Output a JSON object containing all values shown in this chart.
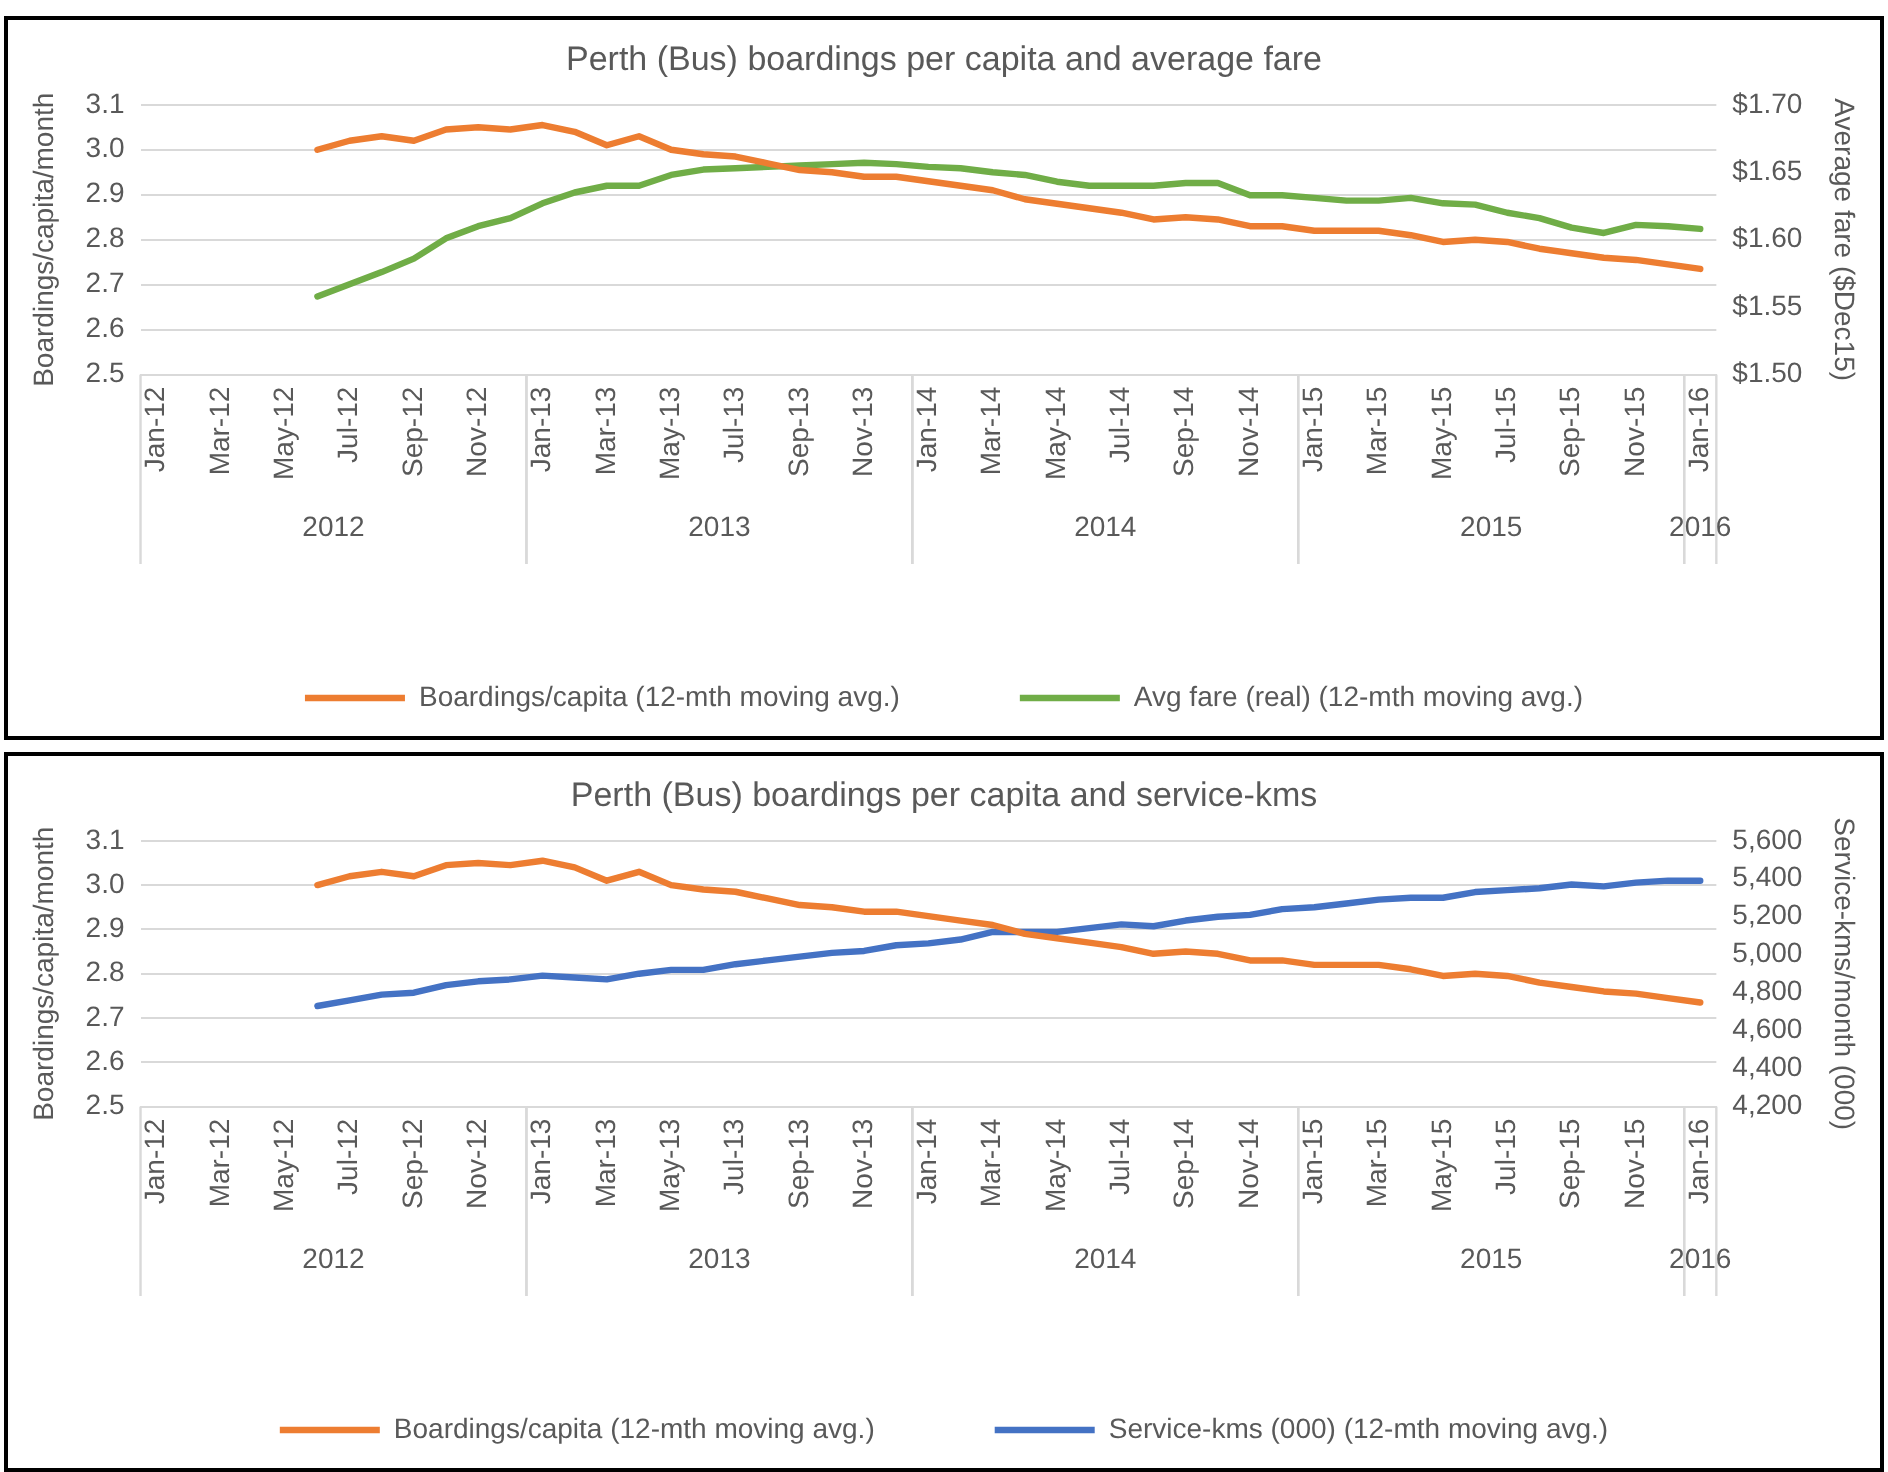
{
  "chart_data": [
    {
      "type": "line",
      "title": "Perth (Bus) boardings per capita and average fare",
      "ylabel": "Boardings/capita/month",
      "y2label": "Average fare ($Dec15)",
      "categories": [
        "Jan-12",
        null,
        "Mar-12",
        null,
        "May-12",
        null,
        "Jul-12",
        null,
        "Sep-12",
        null,
        "Nov-12",
        null,
        "Jan-13",
        null,
        "Mar-13",
        null,
        "May-13",
        null,
        "Jul-13",
        null,
        "Sep-13",
        null,
        "Nov-13",
        null,
        "Jan-14",
        null,
        "Mar-14",
        null,
        "May-14",
        null,
        "Jul-14",
        null,
        "Sep-14",
        null,
        "Nov-14",
        null,
        "Jan-15",
        null,
        "Mar-15",
        null,
        "May-15",
        null,
        "Jul-15",
        null,
        "Sep-15",
        null,
        "Nov-15",
        null,
        "Jan-16"
      ],
      "series": [
        {
          "name": "Boardings/capita (12-mth moving avg.)",
          "color": "#ed7d31",
          "values": [
            null,
            null,
            null,
            null,
            null,
            3.0,
            3.02,
            3.03,
            3.02,
            3.045,
            3.05,
            3.045,
            3.055,
            3.04,
            3.01,
            3.03,
            3.0,
            2.99,
            2.985,
            2.97,
            2.955,
            2.95,
            2.94,
            2.94,
            2.93,
            2.92,
            2.91,
            2.89,
            2.88,
            2.87,
            2.86,
            2.845,
            2.85,
            2.845,
            2.83,
            2.83,
            2.82,
            2.82,
            2.82,
            2.81,
            2.795,
            2.8,
            2.795,
            2.78,
            2.77,
            2.76,
            2.755,
            2.745,
            2.735
          ]
        },
        {
          "name": "Avg fare (real) (12-mth moving avg.)",
          "color": "#70ad47",
          "axis": "y2",
          "values": [
            null,
            null,
            null,
            null,
            null,
            1.558,
            1.567,
            1.576,
            1.586,
            1.601,
            1.61,
            1.616,
            1.627,
            1.635,
            1.64,
            1.64,
            1.648,
            1.652,
            1.653,
            1.654,
            1.655,
            1.656,
            1.657,
            1.656,
            1.654,
            1.653,
            1.65,
            1.648,
            1.643,
            1.64,
            1.64,
            1.64,
            1.642,
            1.642,
            1.633,
            1.633,
            1.631,
            1.629,
            1.629,
            1.631,
            1.627,
            1.626,
            1.62,
            1.616,
            1.609,
            1.605,
            1.611,
            1.61,
            1.608
          ]
        }
      ],
      "ylim": [
        2.5,
        3.1
      ],
      "yticks": [
        {
          "value": 2.5,
          "label": "2.5"
        },
        {
          "value": 2.6,
          "label": "2.6"
        },
        {
          "value": 2.7,
          "label": "2.7"
        },
        {
          "value": 2.8,
          "label": "2.8"
        },
        {
          "value": 2.9,
          "label": "2.9"
        },
        {
          "value": 3.0,
          "label": "3.0"
        },
        {
          "value": 3.1,
          "label": "3.1"
        }
      ],
      "y2lim": [
        1.5,
        1.7
      ],
      "y2ticks": [
        {
          "value": 1.5,
          "label": "$1.50"
        },
        {
          "value": 1.55,
          "label": "$1.55"
        },
        {
          "value": 1.6,
          "label": "$1.60"
        },
        {
          "value": 1.65,
          "label": "$1.65"
        },
        {
          "value": 1.7,
          "label": "$1.70"
        }
      ],
      "annotations": [
        "2012",
        "2013",
        "2014",
        "2015",
        "2016"
      ],
      "grid": "y",
      "legend": "bottom",
      "marker": "none",
      "line_style": "solid"
    },
    {
      "type": "line",
      "title": "Perth (Bus) boardings per capita and service-kms",
      "ylabel": "Boardings/capita/month",
      "y2label": "Service-kms/month (000)",
      "categories": [
        "Jan-12",
        null,
        "Mar-12",
        null,
        "May-12",
        null,
        "Jul-12",
        null,
        "Sep-12",
        null,
        "Nov-12",
        null,
        "Jan-13",
        null,
        "Mar-13",
        null,
        "May-13",
        null,
        "Jul-13",
        null,
        "Sep-13",
        null,
        "Nov-13",
        null,
        "Jan-14",
        null,
        "Mar-14",
        null,
        "May-14",
        null,
        "Jul-14",
        null,
        "Sep-14",
        null,
        "Nov-14",
        null,
        "Jan-15",
        null,
        "Mar-15",
        null,
        "May-15",
        null,
        "Jul-15",
        null,
        "Sep-15",
        null,
        "Nov-15",
        null,
        "Jan-16"
      ],
      "series": [
        {
          "name": "Boardings/capita (12-mth moving avg.)",
          "color": "#ed7d31",
          "values": [
            null,
            null,
            null,
            null,
            null,
            3.0,
            3.02,
            3.03,
            3.02,
            3.045,
            3.05,
            3.045,
            3.055,
            3.04,
            3.01,
            3.03,
            3.0,
            2.99,
            2.985,
            2.97,
            2.955,
            2.95,
            2.94,
            2.94,
            2.93,
            2.92,
            2.91,
            2.89,
            2.88,
            2.87,
            2.86,
            2.845,
            2.85,
            2.845,
            2.83,
            2.83,
            2.82,
            2.82,
            2.82,
            2.81,
            2.795,
            2.8,
            2.795,
            2.78,
            2.77,
            2.76,
            2.755,
            2.745,
            2.735
          ]
        },
        {
          "name": "Service-kms (000) (12-mth moving avg.)",
          "color": "#4472c4",
          "axis": "y2",
          "values": [
            null,
            null,
            null,
            null,
            null,
            4730,
            4760,
            4790,
            4800,
            4840,
            4860,
            4870,
            4890,
            4880,
            4870,
            4900,
            4920,
            4920,
            4950,
            4970,
            4990,
            5010,
            5020,
            5050,
            5060,
            5080,
            5120,
            5120,
            5120,
            5140,
            5160,
            5150,
            5180,
            5200,
            5210,
            5240,
            5250,
            5270,
            5290,
            5300,
            5300,
            5330,
            5340,
            5350,
            5370,
            5360,
            5380,
            5390,
            5390
          ]
        }
      ],
      "ylim": [
        2.5,
        3.1
      ],
      "yticks": [
        {
          "value": 2.5,
          "label": "2.5"
        },
        {
          "value": 2.6,
          "label": "2.6"
        },
        {
          "value": 2.7,
          "label": "2.7"
        },
        {
          "value": 2.8,
          "label": "2.8"
        },
        {
          "value": 2.9,
          "label": "2.9"
        },
        {
          "value": 3.0,
          "label": "3.0"
        },
        {
          "value": 3.1,
          "label": "3.1"
        }
      ],
      "y2lim": [
        4200,
        5600
      ],
      "y2ticks": [
        {
          "value": 4200,
          "label": "4,200"
        },
        {
          "value": 4400,
          "label": "4,400"
        },
        {
          "value": 4600,
          "label": "4,600"
        },
        {
          "value": 4800,
          "label": "4,800"
        },
        {
          "value": 5000,
          "label": "5,000"
        },
        {
          "value": 5200,
          "label": "5,200"
        },
        {
          "value": 5400,
          "label": "5,400"
        },
        {
          "value": 5600,
          "label": "5,600"
        }
      ],
      "annotations": [
        "2012",
        "2013",
        "2014",
        "2015",
        "2016"
      ],
      "grid": "y",
      "legend": "bottom",
      "marker": "none",
      "line_style": "solid"
    }
  ]
}
